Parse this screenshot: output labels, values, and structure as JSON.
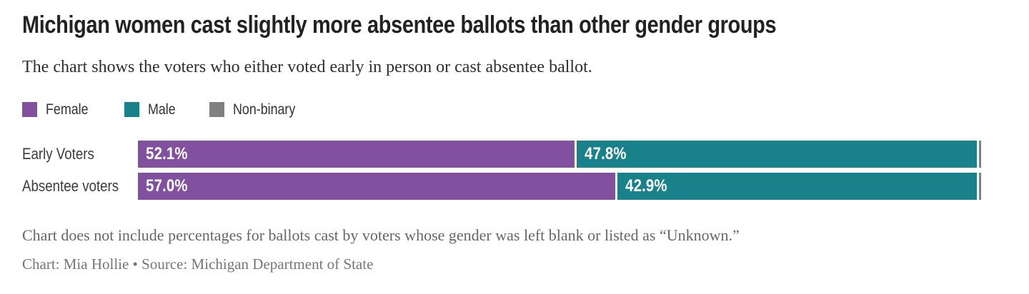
{
  "header": {
    "title": "Michigan women cast slightly more absentee ballots than other gender groups",
    "subtitle": "The chart shows the voters who either voted early in person or cast absentee ballot."
  },
  "chart_data": {
    "type": "bar",
    "orientation": "horizontal",
    "stacked": true,
    "categories": [
      "Early Voters",
      "Absentee voters"
    ],
    "series": [
      {
        "name": "Female",
        "color": "#81519F",
        "values": [
          52.1,
          57.0
        ],
        "labels": [
          "52.1%",
          "57.0%"
        ]
      },
      {
        "name": "Male",
        "color": "#188189",
        "values": [
          47.8,
          42.9
        ],
        "labels": [
          "47.8%",
          "42.9%"
        ]
      },
      {
        "name": "Non-binary",
        "color": "#808080",
        "values": [
          0.1,
          0.1
        ],
        "labels": [
          "",
          ""
        ]
      }
    ],
    "xlim": [
      0,
      100
    ],
    "unit": "%",
    "legend_position": "top",
    "value_labels_inside": true,
    "grid": false
  },
  "footer": {
    "note": "Chart does not include percentages for ballots cast by voters whose gender was left blank or listed as “Unknown.”",
    "credit": "Chart: Mia Hollie • Source: Michigan Department of State"
  }
}
